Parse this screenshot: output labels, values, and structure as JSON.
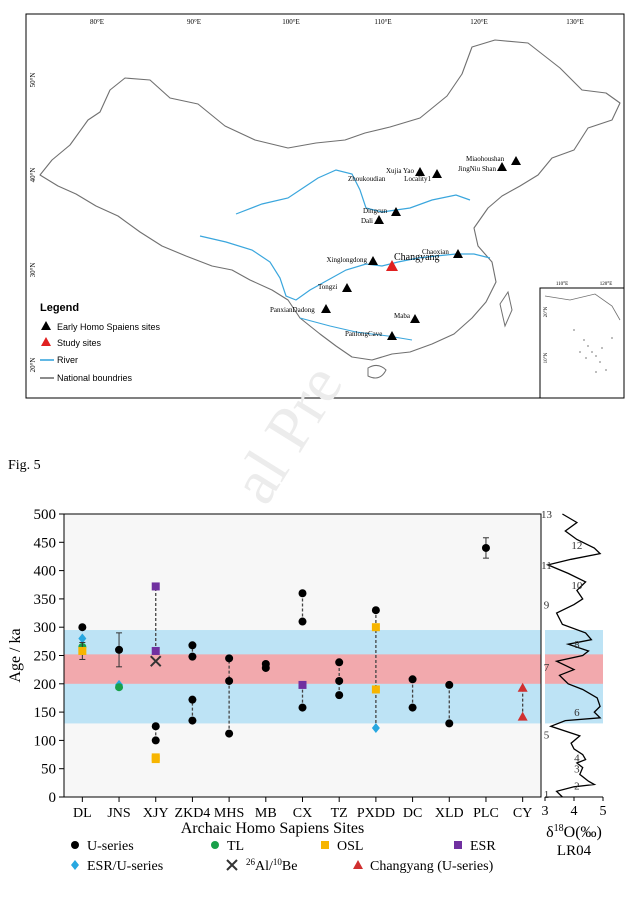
{
  "map": {
    "lon_labels": [
      "80°E",
      "90°E",
      "100°E",
      "110°E",
      "120°E",
      "130°E"
    ],
    "lat_labels": [
      "50°N",
      "40°N",
      "30°N",
      "20°N"
    ],
    "inset_lon_labels": [
      "110°E",
      "120°E"
    ],
    "inset_lat_labels": [
      "20°N",
      "10°N"
    ],
    "legend": {
      "title": "Legend",
      "items": [
        "Early Homo Spaiens sites",
        "Study sites",
        "River",
        "National boundries"
      ]
    },
    "colors": {
      "river": "#3aa6dd",
      "boundary": "#707070",
      "site": "#000000",
      "study_site": "#e02020"
    },
    "sites": [
      "Xujia Yao",
      "Locality1",
      "Zhoukoudian",
      "Miaohoushan",
      "JingNiu Shan",
      "Dingcun",
      "Dali",
      "Xinglongdong",
      "Chaoxian",
      "Tongzi",
      "PanxianDadong",
      "Maba",
      "PanlongCave"
    ],
    "study_site": "Changyang"
  },
  "figure_label": "Fig. 5",
  "watermark": "al Pre",
  "chart_data": {
    "type": "scatter",
    "xlabel": "Archaic Homo Sapiens Sites",
    "ylabel": "Age / ka",
    "categories": [
      "DL",
      "JNS",
      "XJY",
      "ZKD4",
      "MHS",
      "MB",
      "CX",
      "TZ",
      "PXDD",
      "DC",
      "XLD",
      "PLC",
      "CY"
    ],
    "yticks": [
      "0",
      "50",
      "100",
      "150",
      "200",
      "250",
      "300",
      "350",
      "400",
      "450",
      "500"
    ],
    "ylim": [
      0,
      500
    ],
    "bands": [
      {
        "from": 130,
        "to": 295,
        "color": "#bde3f5"
      },
      {
        "from": 200,
        "to": 252,
        "color": "#f2a9ad"
      }
    ],
    "method_colors": {
      "U-series": "#000000",
      "TL": "#19a04a",
      "OSL": "#f7b500",
      "ESR": "#7030a0",
      "ESR/U-series": "#27a7e0",
      "26Al/10Be": "#333333",
      "Changyang (U-series)": "#d03030"
    },
    "ranges": [
      {
        "site": "XJY",
        "from": 258,
        "to": 372
      },
      {
        "site": "XJY",
        "from": 100,
        "to": 125
      },
      {
        "site": "ZKD4",
        "from": 248,
        "to": 268
      },
      {
        "site": "ZKD4",
        "from": 135,
        "to": 172
      },
      {
        "site": "MHS",
        "from": 112,
        "to": 245
      },
      {
        "site": "CX",
        "from": 310,
        "to": 360
      },
      {
        "site": "CX",
        "from": 158,
        "to": 198
      },
      {
        "site": "TZ",
        "from": 205,
        "to": 238
      },
      {
        "site": "TZ",
        "from": 180,
        "to": 205
      },
      {
        "site": "PXDD",
        "from": 122,
        "to": 330
      },
      {
        "site": "DC",
        "from": 158,
        "to": 208
      },
      {
        "site": "XLD",
        "from": 130,
        "to": 198
      },
      {
        "site": "CY",
        "from": 142,
        "to": 193
      }
    ],
    "points": [
      {
        "site": "DL",
        "method": "U-series",
        "value": 300
      },
      {
        "site": "DL",
        "method": "ESR/U-series",
        "value": 280
      },
      {
        "site": "DL",
        "method": "TL",
        "value": 265
      },
      {
        "site": "DL",
        "method": "OSL",
        "value": 258,
        "err": 15
      },
      {
        "site": "JNS",
        "method": "U-series",
        "value": 260,
        "err": 30
      },
      {
        "site": "JNS",
        "method": "ESR/U-series",
        "value": 198
      },
      {
        "site": "JNS",
        "method": "TL",
        "value": 194
      },
      {
        "site": "XJY",
        "method": "ESR",
        "value": 372
      },
      {
        "site": "XJY",
        "method": "ESR",
        "value": 258
      },
      {
        "site": "XJY",
        "method": "26Al/10Be",
        "value": 240
      },
      {
        "site": "XJY",
        "method": "U-series",
        "value": 125
      },
      {
        "site": "XJY",
        "method": "U-series",
        "value": 100
      },
      {
        "site": "XJY",
        "method": "OSL",
        "value": 70
      },
      {
        "site": "XJY",
        "method": "OSL",
        "value": 67
      },
      {
        "site": "ZKD4",
        "method": "U-series",
        "value": 268
      },
      {
        "site": "ZKD4",
        "method": "U-series",
        "value": 248
      },
      {
        "site": "ZKD4",
        "method": "U-series",
        "value": 172
      },
      {
        "site": "ZKD4",
        "method": "U-series",
        "value": 135
      },
      {
        "site": "MHS",
        "method": "U-series",
        "value": 245
      },
      {
        "site": "MHS",
        "method": "U-series",
        "value": 205
      },
      {
        "site": "MHS",
        "method": "U-series",
        "value": 112
      },
      {
        "site": "MB",
        "method": "U-series",
        "value": 235
      },
      {
        "site": "MB",
        "method": "U-series",
        "value": 228
      },
      {
        "site": "CX",
        "method": "U-series",
        "value": 360
      },
      {
        "site": "CX",
        "method": "U-series",
        "value": 310
      },
      {
        "site": "CX",
        "method": "ESR",
        "value": 198
      },
      {
        "site": "CX",
        "method": "U-series",
        "value": 158
      },
      {
        "site": "TZ",
        "method": "U-series",
        "value": 238
      },
      {
        "site": "TZ",
        "method": "U-series",
        "value": 205
      },
      {
        "site": "TZ",
        "method": "U-series",
        "value": 180
      },
      {
        "site": "PXDD",
        "method": "U-series",
        "value": 330
      },
      {
        "site": "PXDD",
        "method": "OSL",
        "value": 300
      },
      {
        "site": "PXDD",
        "method": "OSL",
        "value": 190
      },
      {
        "site": "PXDD",
        "method": "ESR/U-series",
        "value": 122
      },
      {
        "site": "DC",
        "method": "U-series",
        "value": 208
      },
      {
        "site": "DC",
        "method": "U-series",
        "value": 158
      },
      {
        "site": "XLD",
        "method": "U-series",
        "value": 198
      },
      {
        "site": "XLD",
        "method": "U-series",
        "value": 130
      },
      {
        "site": "PLC",
        "method": "U-series",
        "value": 440,
        "err": 18
      },
      {
        "site": "CY",
        "method": "Changyang (U-series)",
        "value": 193
      },
      {
        "site": "CY",
        "method": "Changyang (U-series)",
        "value": 142
      }
    ],
    "legend": [
      "U-series",
      "TL",
      "OSL",
      "ESR",
      "ESR/U-series",
      "26Al/10Be",
      "Changyang (U-series)"
    ],
    "legend_26al": {
      "sup1": "26",
      "mid": "Al/",
      "sup2": "10",
      "end": "Be"
    },
    "lr04": {
      "xlabel_main": "δ",
      "xlabel_sup": "18",
      "xlabel_rest": "O(‰)",
      "xlabel_sub": "LR04",
      "xticks": [
        "3",
        "4",
        "5"
      ],
      "xlim": [
        3,
        5
      ],
      "stage_labels": [
        "1",
        "2",
        "3",
        "4",
        "5",
        "6",
        "7",
        "8",
        "9",
        "10",
        "11",
        "12",
        "13"
      ],
      "stage_positions": [
        5,
        20,
        50,
        70,
        110,
        150,
        230,
        270,
        340,
        375,
        410,
        445,
        500
      ],
      "stage_side": [
        0,
        1,
        1,
        1,
        0,
        1,
        0,
        1,
        0,
        1,
        0,
        1,
        0
      ],
      "curve": [
        [
          3.6,
          0
        ],
        [
          3.4,
          10
        ],
        [
          4.0,
          18
        ],
        [
          4.7,
          22
        ],
        [
          4.5,
          28
        ],
        [
          4.2,
          40
        ],
        [
          4.3,
          52
        ],
        [
          4.1,
          60
        ],
        [
          4.4,
          66
        ],
        [
          4.3,
          75
        ],
        [
          4.0,
          85
        ],
        [
          3.9,
          95
        ],
        [
          4.2,
          108
        ],
        [
          3.2,
          125
        ],
        [
          3.7,
          135
        ],
        [
          4.9,
          140
        ],
        [
          4.7,
          150
        ],
        [
          4.9,
          160
        ],
        [
          4.8,
          175
        ],
        [
          4.3,
          190
        ],
        [
          3.8,
          200
        ],
        [
          3.5,
          215
        ],
        [
          4.0,
          225
        ],
        [
          3.4,
          240
        ],
        [
          4.3,
          250
        ],
        [
          4.5,
          258
        ],
        [
          3.8,
          270
        ],
        [
          4.6,
          278
        ],
        [
          4.4,
          290
        ],
        [
          3.6,
          305
        ],
        [
          3.4,
          325
        ],
        [
          4.0,
          340
        ],
        [
          4.3,
          350
        ],
        [
          4.1,
          365
        ],
        [
          4.4,
          380
        ],
        [
          3.8,
          395
        ],
        [
          3.1,
          410
        ],
        [
          3.9,
          420
        ],
        [
          4.9,
          430
        ],
        [
          4.7,
          440
        ],
        [
          4.1,
          455
        ],
        [
          3.7,
          470
        ],
        [
          4.1,
          485
        ],
        [
          3.6,
          500
        ]
      ]
    }
  }
}
